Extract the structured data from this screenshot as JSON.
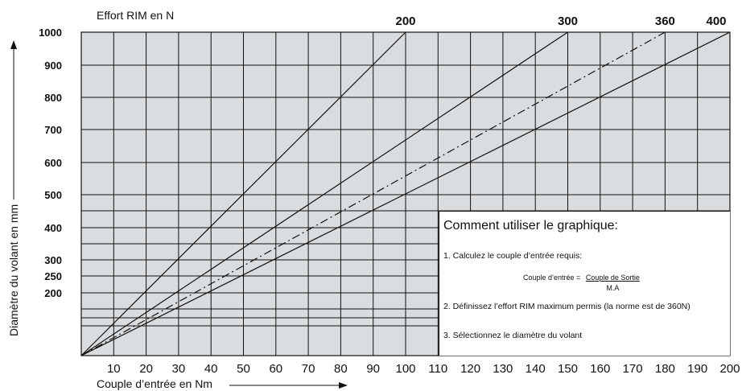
{
  "chart_data": {
    "type": "line",
    "title": "Effort RIM en N",
    "xlabel": "Couple d’entrée en Nm",
    "ylabel": "Diamètre du volant en mm",
    "xlim": [
      0,
      200
    ],
    "ylim_scale": "nonlinear",
    "x_ticks": [
      10,
      20,
      30,
      40,
      50,
      60,
      70,
      80,
      90,
      100,
      110,
      120,
      130,
      140,
      150,
      160,
      170,
      180,
      190,
      200
    ],
    "y_ticks": [
      1000,
      900,
      800,
      700,
      600,
      500,
      400,
      300,
      250,
      200
    ],
    "y_gridlines_unlabeled": [
      450,
      350,
      150,
      130,
      100
    ],
    "grid": true,
    "series": [
      {
        "name": "200",
        "style": "solid",
        "x": [
          0,
          100
        ],
        "y": [
          0,
          1000
        ]
      },
      {
        "name": "300",
        "style": "solid",
        "x": [
          0,
          150
        ],
        "y": [
          0,
          1000
        ]
      },
      {
        "name": "360",
        "style": "dashed",
        "x": [
          0,
          180
        ],
        "y": [
          0,
          1000
        ]
      },
      {
        "name": "400",
        "style": "solid",
        "x": [
          0,
          200
        ],
        "y": [
          0,
          1000
        ]
      }
    ]
  },
  "panel": {
    "title": "Comment utiliser le graphique:",
    "step1": "1. Calculez le couple d’entrée requis:",
    "formula_lhs": "Couple d’entrée =",
    "formula_num": "Couple de Sortie",
    "formula_den": "M.A",
    "step2": "2. Définissez l’effort RIM maximum permis (la norme est de 360N)",
    "step3": "3. Sélectionnez le diamètre du volant"
  }
}
